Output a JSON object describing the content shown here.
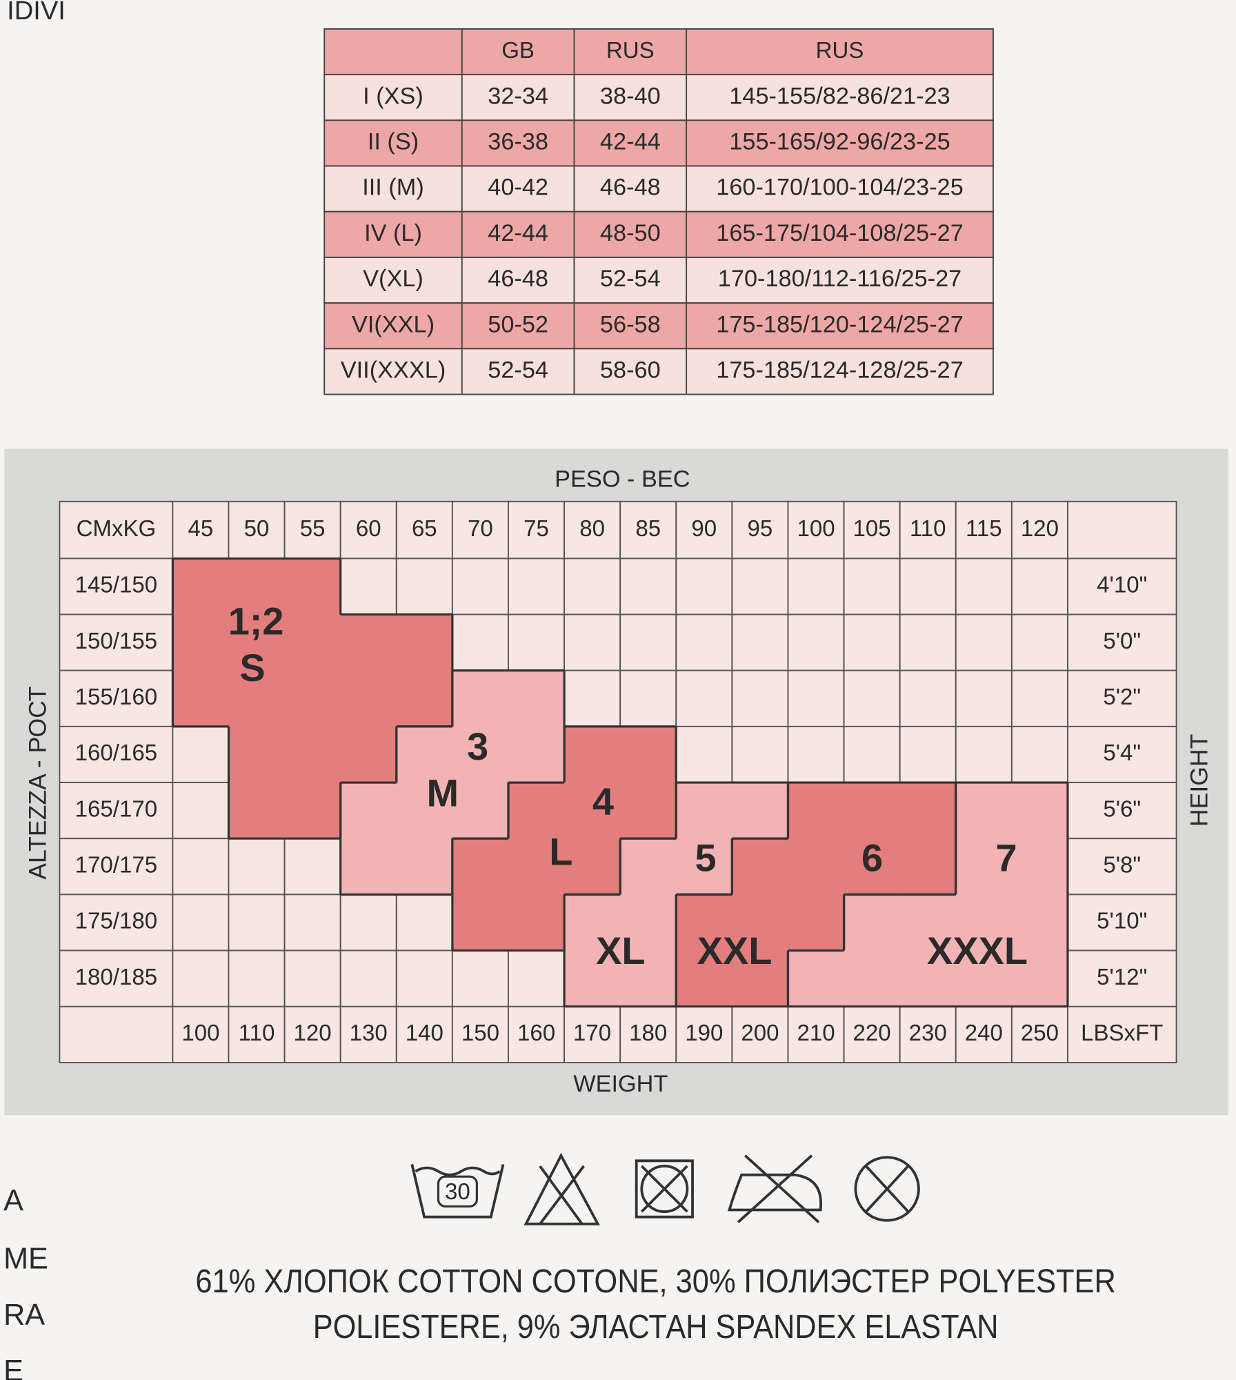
{
  "edge_fragments": {
    "top": "IDIVI",
    "left": [
      "A",
      "ME",
      "RA",
      "E"
    ]
  },
  "size_table": {
    "header": [
      "GB",
      "RUS",
      "RUS"
    ],
    "rows": [
      {
        "label": "I (XS)",
        "cells": [
          "32-34",
          "38-40",
          "145-155/82-86/21-23"
        ]
      },
      {
        "label": "II (S)",
        "cells": [
          "36-38",
          "42-44",
          "155-165/92-96/23-25"
        ]
      },
      {
        "label": "III (M)",
        "cells": [
          "40-42",
          "46-48",
          "160-170/100-104/23-25"
        ]
      },
      {
        "label": "IV (L)",
        "cells": [
          "42-44",
          "48-50",
          "165-175/104-108/25-27"
        ]
      },
      {
        "label": "V(XL)",
        "cells": [
          "46-48",
          "52-54",
          "170-180/112-116/25-27"
        ]
      },
      {
        "label": "VI(XXL)",
        "cells": [
          "50-52",
          "56-58",
          "175-185/120-124/25-27"
        ]
      },
      {
        "label": "VII(XXXL)",
        "cells": [
          "52-54",
          "58-60",
          "175-185/124-128/25-27"
        ]
      }
    ]
  },
  "size_grid": {
    "top_title": "PESO - ВЕС",
    "bottom_title": "WEIGHT",
    "left_title": "ALTEZZA - РОСТ",
    "right_title": "HEIGHT",
    "corner_metric": "CMxKG",
    "corner_imperial": "LBSxFT",
    "weights_kg": [
      "45",
      "50",
      "55",
      "60",
      "65",
      "70",
      "75",
      "80",
      "85",
      "90",
      "95",
      "100",
      "105",
      "110",
      "115",
      "120"
    ],
    "weights_lbs": [
      "100",
      "110",
      "120",
      "130",
      "140",
      "150",
      "160",
      "170",
      "180",
      "190",
      "200",
      "210",
      "220",
      "230",
      "240",
      "250"
    ],
    "heights_cm": [
      "145/150",
      "150/155",
      "155/160",
      "160/165",
      "165/170",
      "170/175",
      "175/180",
      "180/185"
    ],
    "heights_ft": [
      "4'10\"",
      "5'0\"",
      "5'2\"",
      "5'4\"",
      "5'6\"",
      "5'8\"",
      "5'10\"",
      "5'12\""
    ],
    "zones": [
      {
        "number": "1;2",
        "size": "S"
      },
      {
        "number": "3",
        "size": "M"
      },
      {
        "number": "4",
        "size": "L"
      },
      {
        "number": "5",
        "size": "XL"
      },
      {
        "number": "6",
        "size": "XXL"
      },
      {
        "number": "7",
        "size": "XXXL"
      }
    ]
  },
  "care": {
    "wash_temperature": "30"
  },
  "composition": [
    "61% ХЛОПОК COTTON COTONE, 30% ПОЛИЭСТЕР POLYESTER",
    "POLIESTERE, 9% ЭЛАСТАН SPANDEX ELASTAN"
  ]
}
